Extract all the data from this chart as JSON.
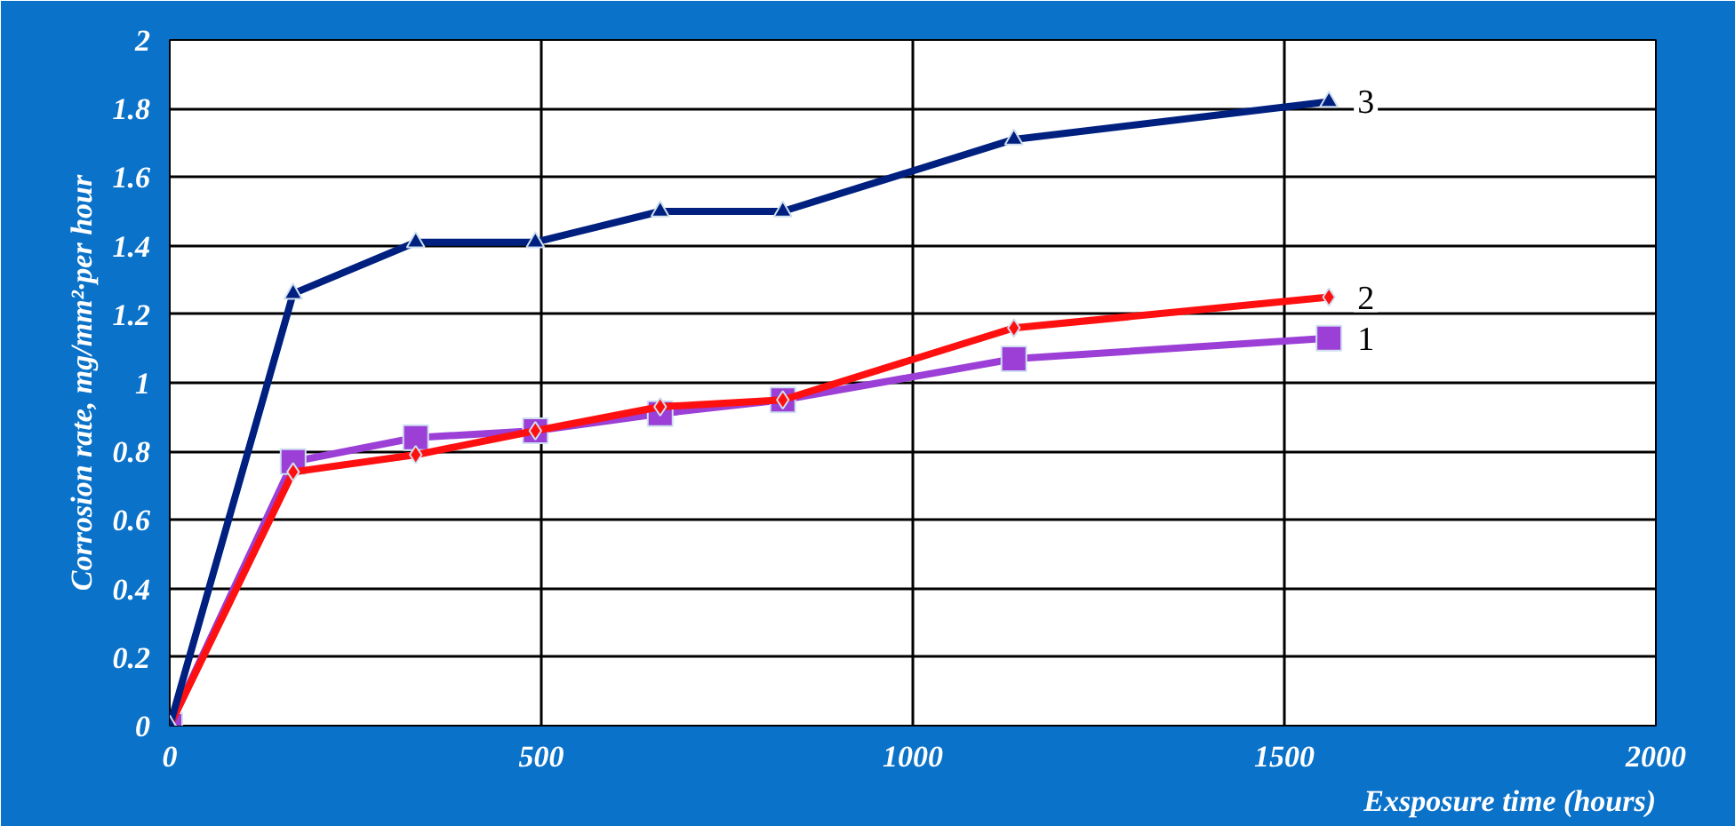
{
  "chart_data": {
    "type": "line",
    "xlabel": "Exsposure time (hours)",
    "ylabel": "Corrosion rate, mg/mm²·per hour",
    "xlim": [
      0,
      2000
    ],
    "xticks": [
      0,
      500,
      1000,
      1500,
      2000
    ],
    "ylim": [
      0,
      2
    ],
    "yticks": [
      0,
      0.2,
      0.4,
      0.6,
      0.8,
      1,
      1.2,
      1.4,
      1.6,
      1.8,
      2
    ],
    "grid": true,
    "line_style": "solid",
    "x": [
      0,
      166,
      331,
      492,
      660,
      825,
      1136,
      1560
    ],
    "series": [
      {
        "name": "1",
        "color": "#9b3fd6",
        "marker": "square",
        "values": [
          0,
          0.77,
          0.84,
          0.86,
          0.91,
          0.95,
          1.07,
          1.13
        ]
      },
      {
        "name": "2",
        "color": "#ff1010",
        "marker": "diamond",
        "values": [
          0,
          0.74,
          0.79,
          0.86,
          0.93,
          0.95,
          1.16,
          1.25
        ]
      },
      {
        "name": "3",
        "color": "#002080",
        "marker": "triangle",
        "values": [
          0,
          1.26,
          1.41,
          1.41,
          1.5,
          1.5,
          1.71,
          1.82
        ]
      }
    ]
  }
}
